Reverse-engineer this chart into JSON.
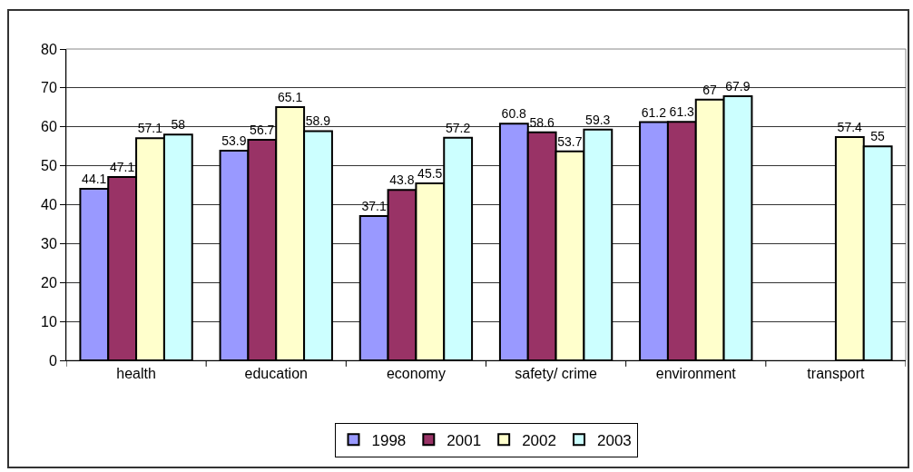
{
  "chart_data": {
    "type": "bar",
    "categories": [
      "health",
      "education",
      "economy",
      "safety/ crime",
      "environment",
      "transport"
    ],
    "series": [
      {
        "name": "1998",
        "color": "#9999ff",
        "values": [
          44.1,
          53.9,
          37.1,
          60.8,
          61.2,
          null
        ]
      },
      {
        "name": "2001",
        "color": "#993366",
        "values": [
          47.1,
          56.7,
          43.8,
          58.6,
          61.3,
          null
        ]
      },
      {
        "name": "2002",
        "color": "#ffffcc",
        "values": [
          57.1,
          65.1,
          45.5,
          53.7,
          67,
          57.4
        ]
      },
      {
        "name": "2003",
        "color": "#ccffff",
        "values": [
          58,
          58.9,
          57.2,
          59.3,
          67.9,
          55
        ]
      }
    ],
    "ylim": [
      0,
      80
    ],
    "yticks": [
      0,
      10,
      20,
      30,
      40,
      50,
      60,
      70,
      80
    ],
    "grid": "y",
    "legend": "bottom",
    "data_labels": true
  }
}
